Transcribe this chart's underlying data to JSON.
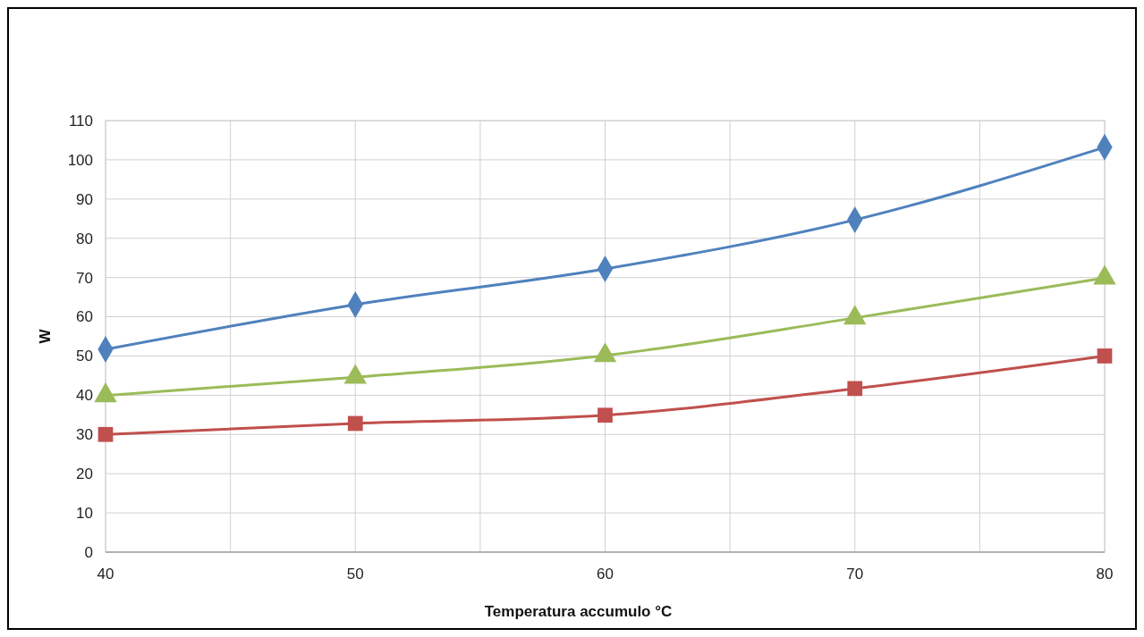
{
  "chart_data": {
    "type": "line",
    "xlabel": "Temperatura accumulo °C",
    "ylabel": "W",
    "x": [
      40,
      50,
      60,
      70,
      80
    ],
    "series": [
      {
        "color": "#c0504d",
        "marker": "square",
        "values": [
          30,
          32.8,
          34.9,
          41.7,
          50
        ]
      },
      {
        "color": "#4f81bd",
        "marker": "diamond",
        "values": [
          51.7,
          63.1,
          72.2,
          84.7,
          103.2
        ]
      },
      {
        "color": "#9bbb59",
        "marker": "triangle",
        "values": [
          39.9,
          44.6,
          50.1,
          59.7,
          69.9
        ]
      }
    ],
    "xlim": [
      40,
      80
    ],
    "xticks": [
      40,
      {
        "value": 45,
        "label": null
      },
      50,
      {
        "value": 55,
        "label": null
      },
      60,
      {
        "value": 65,
        "label": null
      },
      70,
      {
        "value": 75,
        "label": null
      },
      80
    ],
    "ylim": [
      0,
      110
    ],
    "yticks": [
      0,
      10,
      20,
      30,
      40,
      50,
      60,
      70,
      80,
      90,
      100,
      110
    ],
    "grid": true,
    "line_style": "solid"
  }
}
